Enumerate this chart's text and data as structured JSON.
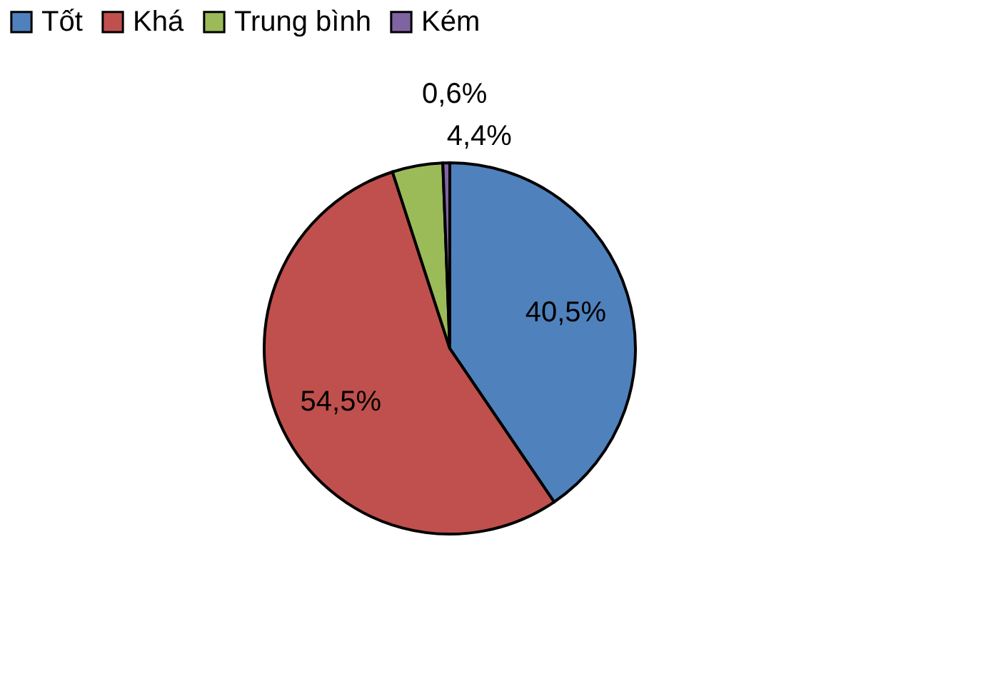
{
  "chart_data": {
    "type": "pie",
    "categories": [
      "Tốt",
      "Khá",
      "Trung bình",
      "Kém"
    ],
    "values": [
      40.5,
      54.5,
      4.4,
      0.6
    ],
    "colors": [
      "#4f81bd",
      "#c0504d",
      "#9bbb59",
      "#8064a2"
    ],
    "value_labels": [
      "40,5%",
      "54,5%",
      "4,4%",
      "0,6%"
    ],
    "legend": "top"
  }
}
